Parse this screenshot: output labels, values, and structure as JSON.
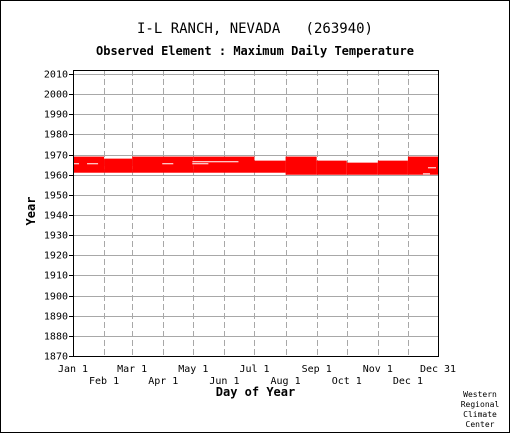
{
  "header": {
    "station": "I-L RANCH, NEVADA   (263940)",
    "element": "Observed Element : Maximum Daily Temperature"
  },
  "credit": [
    "Western",
    "Regional",
    "Climate",
    "Center"
  ],
  "chart_data": {
    "type": "scatter",
    "title": "I-L RANCH, NEVADA   (263940)",
    "subtitle": "Observed Element : Maximum Daily Temperature",
    "xlabel": "Day of Year",
    "ylabel": "Year",
    "xlim": [
      1,
      365
    ],
    "ylim": [
      1870,
      2012
    ],
    "x_ticks_upper": [
      {
        "label": "Jan 1",
        "day": 1
      },
      {
        "label": "Mar 1",
        "day": 60
      },
      {
        "label": "May 1",
        "day": 121
      },
      {
        "label": "Jul 1",
        "day": 182
      },
      {
        "label": "Sep 1",
        "day": 244
      },
      {
        "label": "Nov 1",
        "day": 305
      },
      {
        "label": "Dec 31",
        "day": 365
      }
    ],
    "x_ticks_lower": [
      {
        "label": "Feb 1",
        "day": 32
      },
      {
        "label": "Apr 1",
        "day": 91
      },
      {
        "label": "Jun 1",
        "day": 152
      },
      {
        "label": "Aug 1",
        "day": 213
      },
      {
        "label": "Oct 1",
        "day": 274
      },
      {
        "label": "Dec 1",
        "day": 335
      }
    ],
    "y_ticks": [
      1870,
      1880,
      1890,
      1900,
      1910,
      1920,
      1930,
      1940,
      1950,
      1960,
      1970,
      1980,
      1990,
      2000,
      2010
    ],
    "grid": true,
    "series": [
      {
        "color": "#ff0000",
        "coverage": [
          {
            "day_start": 1,
            "day_end": 31,
            "year_start": 1961,
            "year_end": 1968
          },
          {
            "day_start": 32,
            "day_end": 59,
            "year_start": 1961,
            "year_end": 1967
          },
          {
            "day_start": 60,
            "day_end": 120,
            "year_start": 1961,
            "year_end": 1968
          },
          {
            "day_start": 121,
            "day_end": 181,
            "year_start": 1961,
            "year_end": 1968
          },
          {
            "day_start": 182,
            "day_end": 212,
            "year_start": 1961,
            "year_end": 1966
          },
          {
            "day_start": 213,
            "day_end": 243,
            "year_start": 1960,
            "year_end": 1968
          },
          {
            "day_start": 244,
            "day_end": 273,
            "year_start": 1960,
            "year_end": 1966
          },
          {
            "day_start": 274,
            "day_end": 304,
            "year_start": 1960,
            "year_end": 1965
          },
          {
            "day_start": 305,
            "day_end": 334,
            "year_start": 1960,
            "year_end": 1966
          },
          {
            "day_start": 335,
            "day_end": 365,
            "year_start": 1960,
            "year_end": 1968
          }
        ],
        "missing_years": [
          {
            "day_start": 1,
            "day_end": 6,
            "year": 1965
          },
          {
            "day_start": 15,
            "day_end": 25,
            "year": 1965
          },
          {
            "day_start": 90,
            "day_end": 100,
            "year": 1965
          },
          {
            "day_start": 120,
            "day_end": 165,
            "year": 1966
          },
          {
            "day_start": 120,
            "day_end": 135,
            "year": 1965
          },
          {
            "day_start": 355,
            "day_end": 362,
            "year": 1963
          },
          {
            "day_start": 350,
            "day_end": 356,
            "year": 1960
          }
        ]
      }
    ]
  }
}
